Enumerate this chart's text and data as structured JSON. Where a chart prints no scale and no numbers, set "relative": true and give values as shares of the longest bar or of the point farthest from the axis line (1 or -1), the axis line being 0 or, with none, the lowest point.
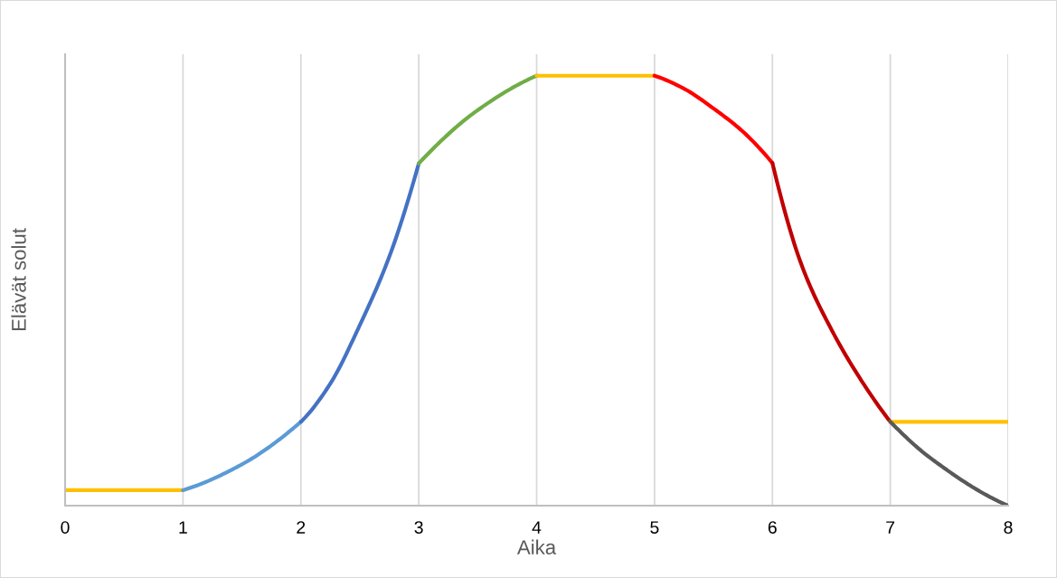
{
  "chart_data": {
    "type": "line",
    "relative": true,
    "xlabel": "Aika",
    "ylabel": "Elävät solut",
    "xlim": [
      0,
      8
    ],
    "xticks": [
      0,
      1,
      2,
      3,
      4,
      5,
      6,
      7,
      8
    ],
    "grid": "x",
    "marker": "none",
    "line_style": "solid",
    "series": [
      {
        "color": "#ffc000",
        "x": [
          0,
          1
        ],
        "values": [
          0.036,
          0.036
        ]
      },
      {
        "color": "#5b9bd5",
        "x": [
          1,
          1.5,
          2
        ],
        "values": [
          0.036,
          0.096,
          0.195
        ]
      },
      {
        "color": "#4472c4",
        "x": [
          2,
          2.25,
          2.5,
          2.75,
          3
        ],
        "values": [
          0.195,
          0.284,
          0.42,
          0.579,
          0.796
        ]
      },
      {
        "color": "#70ad47",
        "x": [
          3,
          3.5,
          4
        ],
        "values": [
          0.796,
          0.92,
          1
        ]
      },
      {
        "color": "#ffc000",
        "x": [
          4,
          5
        ],
        "values": [
          1,
          1
        ]
      },
      {
        "color": "#ff0000",
        "x": [
          5,
          5.25,
          5.5,
          5.75,
          6
        ],
        "values": [
          1,
          0.97,
          0.924,
          0.87,
          0.797
        ]
      },
      {
        "color": "#c00000",
        "x": [
          6,
          6.25,
          6.5,
          6.75,
          7
        ],
        "values": [
          0.797,
          0.558,
          0.41,
          0.293,
          0.195
        ]
      },
      {
        "color": "#ffc000",
        "x": [
          7,
          8
        ],
        "values": [
          0.195,
          0.195
        ]
      },
      {
        "color": "#595959",
        "x": [
          7,
          7.33,
          8
        ],
        "values": [
          0.195,
          0.113,
          0
        ]
      }
    ]
  }
}
